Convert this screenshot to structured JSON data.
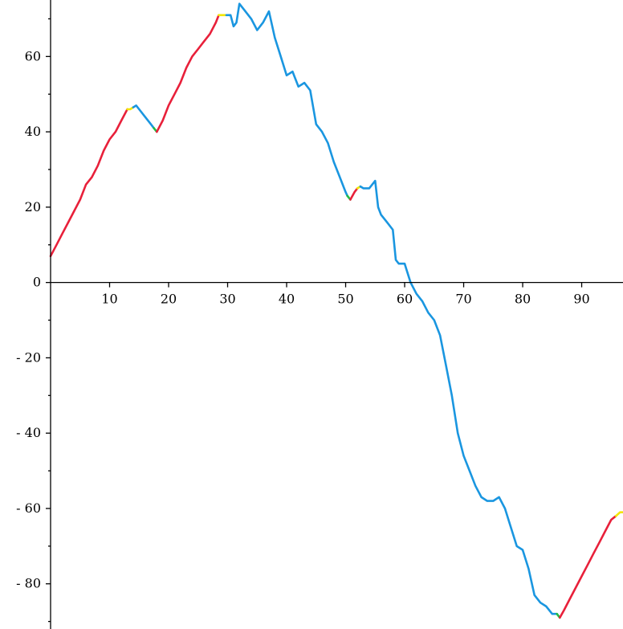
{
  "chart_data": {
    "type": "line",
    "title": "",
    "xlabel": "",
    "ylabel": "",
    "xlim": [
      0,
      97
    ],
    "ylim": [
      -92,
      75
    ],
    "x_ticks": [
      10,
      20,
      30,
      40,
      50,
      60,
      70,
      80,
      90
    ],
    "y_ticks": [
      60,
      40,
      20,
      0,
      -20,
      -40,
      -60,
      -80
    ],
    "x_tick_labels": [
      "10",
      "20",
      "30",
      "40",
      "50",
      "60",
      "70",
      "80",
      "90"
    ],
    "y_tick_labels": [
      "60",
      "40",
      "20",
      "0",
      "- 20",
      "- 40",
      "- 60",
      "- 80"
    ],
    "grid": false,
    "colors": {
      "red": "#e8203a",
      "yellow": "#f2e600",
      "blue": "#1a96e0",
      "green": "#22bb44",
      "axis": "#000000"
    },
    "segments": [
      {
        "color": "red",
        "points": [
          [
            0,
            7
          ],
          [
            1,
            10
          ],
          [
            2,
            13
          ],
          [
            3,
            16
          ],
          [
            4,
            19
          ],
          [
            5,
            22
          ],
          [
            6,
            26
          ],
          [
            7,
            28
          ],
          [
            8,
            31
          ],
          [
            9,
            35
          ],
          [
            10,
            38
          ],
          [
            11,
            40
          ],
          [
            12,
            43
          ],
          [
            13,
            46
          ]
        ]
      },
      {
        "color": "yellow",
        "points": [
          [
            13,
            46
          ],
          [
            13.5,
            46
          ],
          [
            14,
            46.5
          ]
        ]
      },
      {
        "color": "blue",
        "points": [
          [
            14,
            46.5
          ],
          [
            14.5,
            47
          ],
          [
            15,
            46
          ],
          [
            16,
            44
          ],
          [
            17,
            42
          ],
          [
            17.5,
            41
          ]
        ]
      },
      {
        "color": "green",
        "points": [
          [
            17.5,
            41
          ],
          [
            18,
            40
          ]
        ]
      },
      {
        "color": "red",
        "points": [
          [
            18,
            40
          ],
          [
            19,
            43
          ],
          [
            20,
            47
          ],
          [
            21,
            50
          ],
          [
            22,
            53
          ],
          [
            23,
            57
          ],
          [
            24,
            60
          ],
          [
            25,
            62
          ],
          [
            26,
            64
          ],
          [
            27,
            66
          ],
          [
            28,
            69
          ],
          [
            28.5,
            71
          ]
        ]
      },
      {
        "color": "yellow",
        "points": [
          [
            28.5,
            71
          ],
          [
            29,
            71
          ],
          [
            29.8,
            71
          ]
        ]
      },
      {
        "color": "blue",
        "points": [
          [
            29.8,
            71
          ],
          [
            30.5,
            71
          ],
          [
            31,
            68
          ],
          [
            31.5,
            69
          ],
          [
            32,
            74
          ],
          [
            33,
            72
          ],
          [
            34,
            70
          ],
          [
            35,
            67
          ],
          [
            36,
            69
          ],
          [
            37,
            72
          ],
          [
            38,
            65
          ],
          [
            39,
            60
          ],
          [
            40,
            55
          ],
          [
            41,
            56
          ],
          [
            42,
            52
          ],
          [
            43,
            53
          ],
          [
            44,
            51
          ],
          [
            45,
            42
          ],
          [
            46,
            40
          ],
          [
            47,
            37
          ],
          [
            48,
            32
          ],
          [
            49,
            28
          ],
          [
            50,
            24
          ],
          [
            50.3,
            23
          ]
        ]
      },
      {
        "color": "green",
        "points": [
          [
            50.3,
            23
          ],
          [
            50.8,
            22
          ]
        ]
      },
      {
        "color": "red",
        "points": [
          [
            50.8,
            22
          ],
          [
            51.5,
            24
          ],
          [
            52,
            25
          ]
        ]
      },
      {
        "color": "yellow",
        "points": [
          [
            52,
            25
          ],
          [
            52.5,
            25.5
          ]
        ]
      },
      {
        "color": "blue",
        "points": [
          [
            52.5,
            25.5
          ],
          [
            53,
            25
          ],
          [
            54,
            25
          ],
          [
            55,
            27
          ],
          [
            55.5,
            20
          ],
          [
            56,
            18
          ],
          [
            57,
            16
          ],
          [
            58,
            14
          ],
          [
            58.5,
            6
          ],
          [
            59,
            5
          ],
          [
            60,
            5
          ],
          [
            61,
            0
          ],
          [
            62,
            -3
          ],
          [
            63,
            -5
          ],
          [
            64,
            -8
          ],
          [
            65,
            -10
          ],
          [
            66,
            -14
          ],
          [
            67,
            -22
          ],
          [
            68,
            -30
          ],
          [
            69,
            -40
          ],
          [
            70,
            -46
          ],
          [
            71,
            -50
          ],
          [
            72,
            -54
          ],
          [
            73,
            -57
          ],
          [
            74,
            -58
          ],
          [
            75,
            -58
          ],
          [
            76,
            -57
          ],
          [
            77,
            -60
          ],
          [
            78,
            -65
          ],
          [
            79,
            -70
          ],
          [
            80,
            -71
          ],
          [
            81,
            -76
          ],
          [
            82,
            -83
          ],
          [
            83,
            -85
          ],
          [
            84,
            -86
          ],
          [
            85,
            -88
          ],
          [
            85.8,
            -88
          ]
        ]
      },
      {
        "color": "green",
        "points": [
          [
            85.8,
            -88
          ],
          [
            86.3,
            -89
          ]
        ]
      },
      {
        "color": "red",
        "points": [
          [
            86.3,
            -89
          ],
          [
            87,
            -87
          ],
          [
            88,
            -84
          ],
          [
            89,
            -81
          ],
          [
            90,
            -78
          ],
          [
            91,
            -75
          ],
          [
            92,
            -72
          ],
          [
            93,
            -69
          ],
          [
            94,
            -66
          ],
          [
            95,
            -63
          ],
          [
            95.8,
            -62
          ]
        ]
      },
      {
        "color": "yellow",
        "points": [
          [
            95.8,
            -62
          ],
          [
            96.5,
            -61
          ],
          [
            97,
            -61
          ]
        ]
      }
    ]
  }
}
